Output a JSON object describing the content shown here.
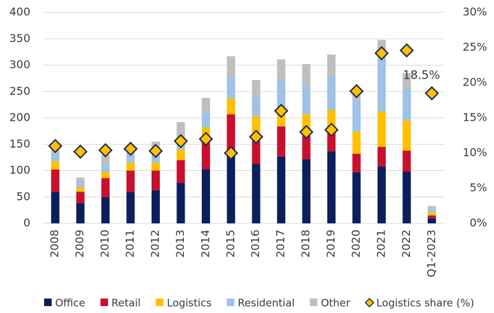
{
  "chart_data": {
    "type": "bar",
    "stacked": true,
    "categories": [
      "2008",
      "2009",
      "2010",
      "2011",
      "2012",
      "2013",
      "2014",
      "2015",
      "2016",
      "2017",
      "2018",
      "2019",
      "2020",
      "2021",
      "2022",
      "Q1-2023"
    ],
    "series": [
      {
        "name": "Office",
        "color": "#0b1f5c",
        "values": [
          60,
          38,
          50,
          60,
          63,
          77,
          103,
          130,
          113,
          127,
          122,
          137,
          97,
          108,
          98,
          10
        ]
      },
      {
        "name": "Retail",
        "color": "#c8102e",
        "values": [
          42,
          22,
          36,
          40,
          37,
          43,
          57,
          77,
          45,
          57,
          45,
          38,
          35,
          37,
          40,
          5
        ]
      },
      {
        "name": "Logistics",
        "color": "#ffc000",
        "values": [
          16,
          8,
          12,
          15,
          15,
          20,
          22,
          30,
          45,
          30,
          40,
          40,
          42,
          67,
          57,
          5
        ]
      },
      {
        "name": "Residential",
        "color": "#9dc3e6",
        "values": [
          15,
          8,
          14,
          15,
          15,
          15,
          28,
          40,
          37,
          60,
          55,
          65,
          60,
          123,
          58,
          5
        ]
      },
      {
        "name": "Other",
        "color": "#bfbfbf",
        "values": [
          13,
          11,
          18,
          10,
          25,
          37,
          28,
          40,
          32,
          37,
          40,
          40,
          16,
          13,
          32,
          8
        ]
      },
      {
        "name": "Logistics share (%)",
        "type": "scatter",
        "axis": "y2",
        "color": "#ffc000",
        "edge": "#1c2b4f",
        "values": [
          11,
          10.2,
          10.4,
          10.6,
          10.3,
          11.7,
          12,
          10,
          12.3,
          16,
          13,
          13.3,
          18.8,
          24.2,
          24.6,
          18.5
        ],
        "value_labels": [
          null,
          null,
          null,
          null,
          null,
          null,
          null,
          null,
          null,
          null,
          null,
          null,
          null,
          null,
          null,
          "18.5%"
        ]
      }
    ],
    "ylim": [
      0,
      400
    ],
    "yticks": [
      0,
      50,
      100,
      150,
      200,
      250,
      300,
      350,
      400
    ],
    "y2lim": [
      0,
      30
    ],
    "y2ticks": [
      {
        "value": 0,
        "label": "0%"
      },
      {
        "value": 5,
        "label": "5%"
      },
      {
        "value": 10,
        "label": "10%"
      },
      {
        "value": 15,
        "label": "15%"
      },
      {
        "value": 20,
        "label": "20%"
      },
      {
        "value": 25,
        "label": "25%"
      },
      {
        "value": 30,
        "label": "30%"
      }
    ],
    "grid": true,
    "legend": "bottom"
  }
}
